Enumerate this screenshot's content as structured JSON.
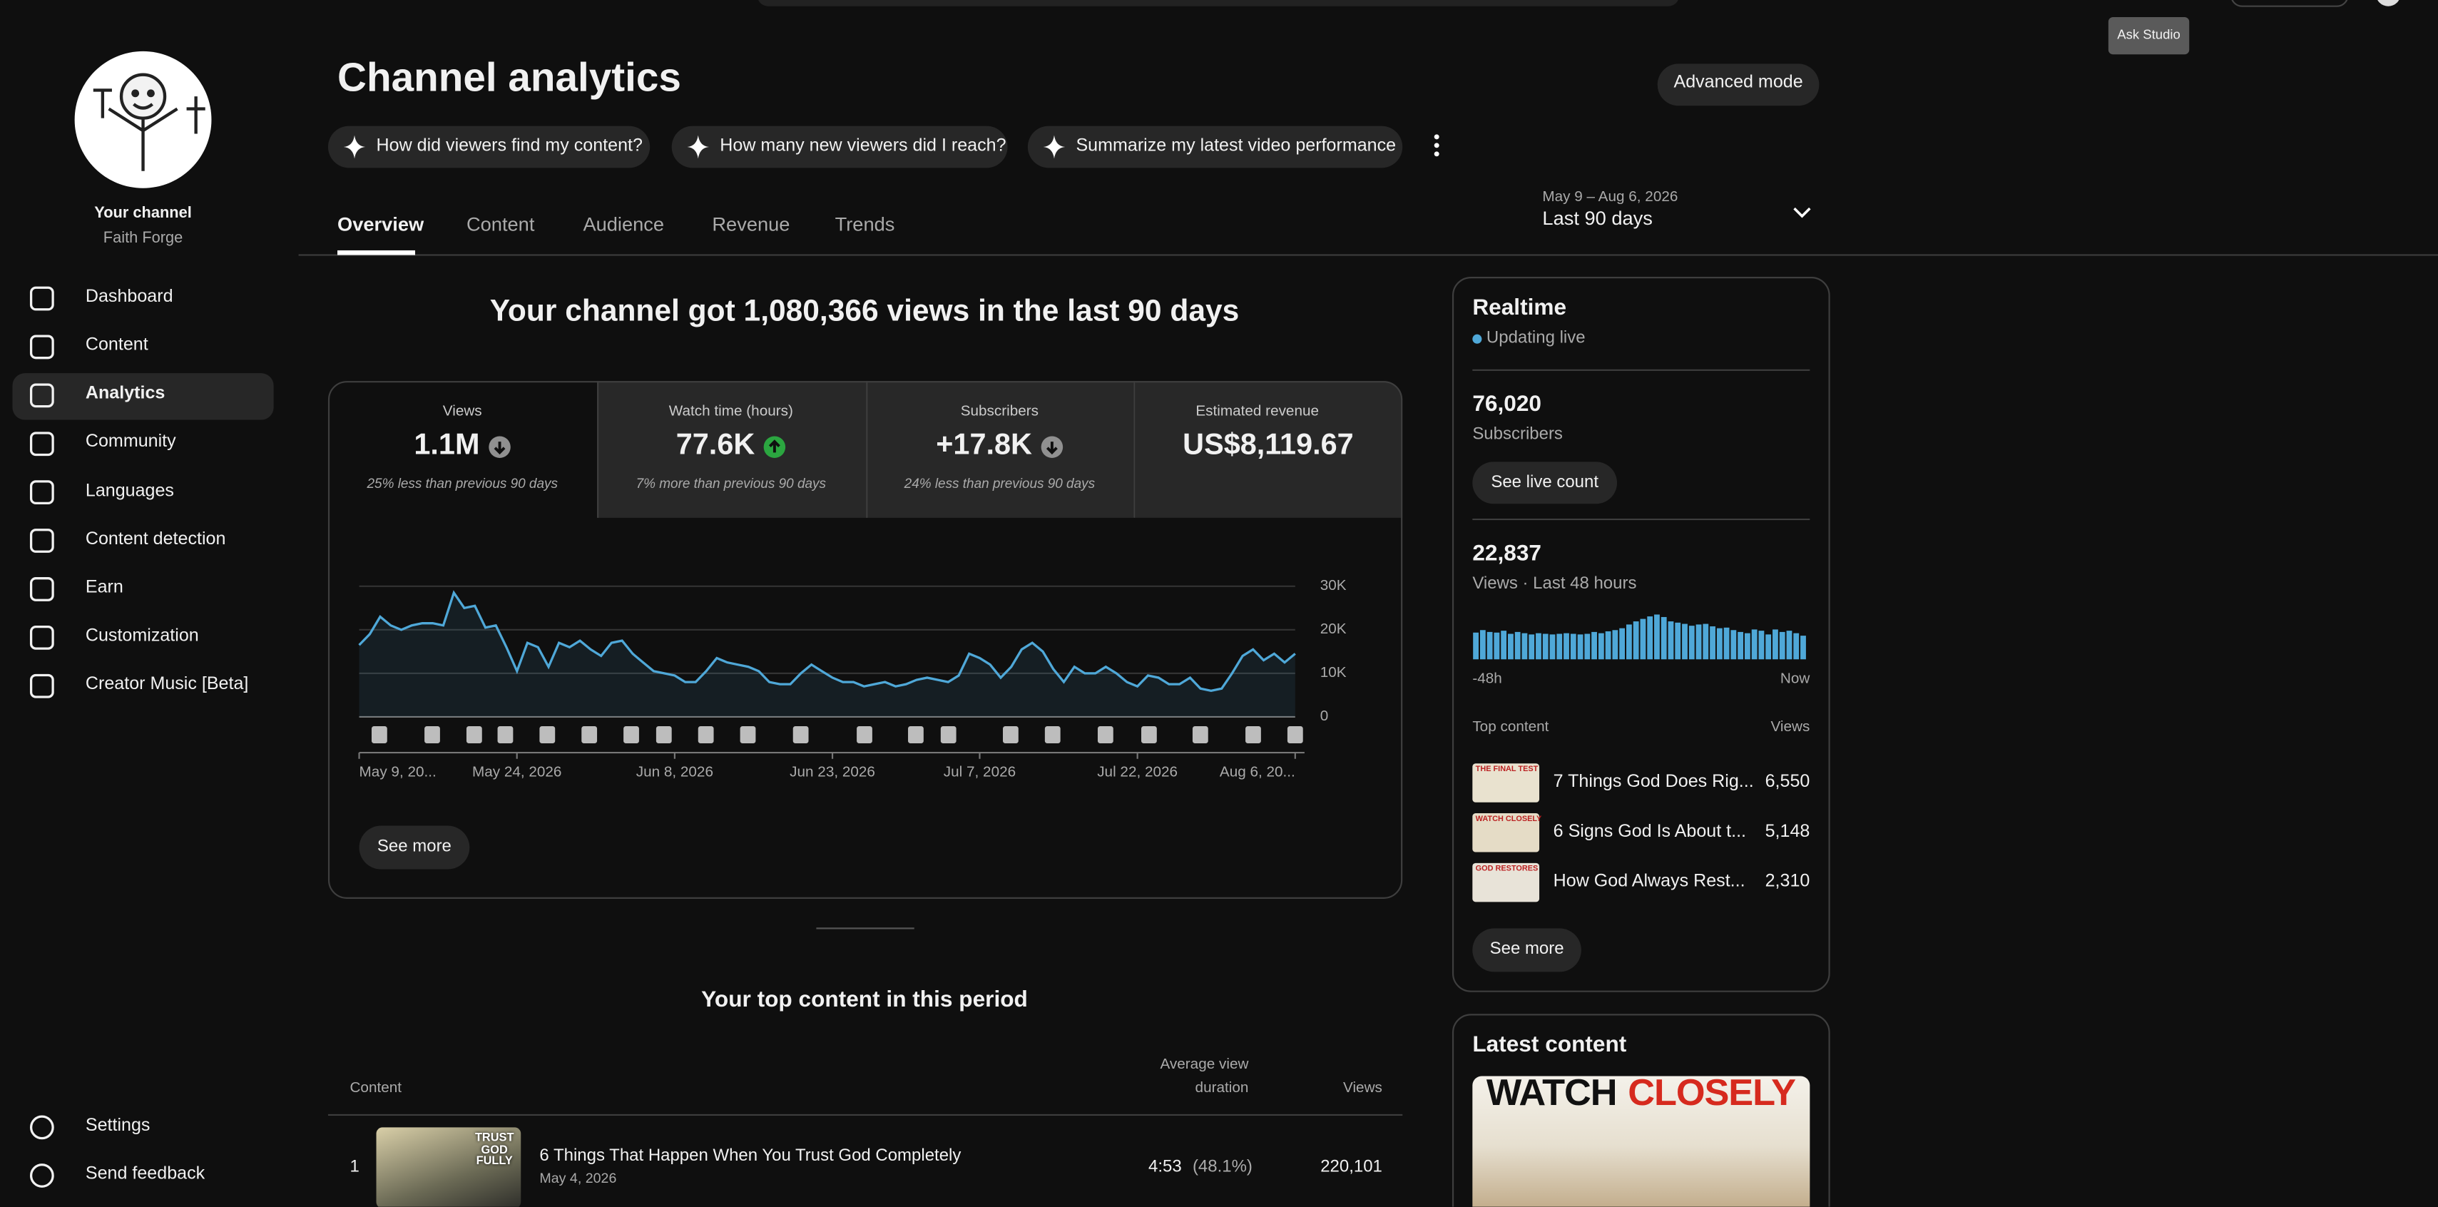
{
  "header": {
    "title": "Channel analytics",
    "advanced_button": "Advanced mode",
    "tooltip": "Ask Studio"
  },
  "prompts": [
    "How did viewers find my content?",
    "How many new viewers did I reach?",
    "Summarize my latest video performance"
  ],
  "tabs": [
    "Overview",
    "Content",
    "Audience",
    "Revenue",
    "Trends"
  ],
  "date_range": {
    "dates": "May 9 – Aug 6, 2026",
    "label": "Last 90 days"
  },
  "sidebar": {
    "channel_label": "Your channel",
    "channel_name": "Faith Forge",
    "nav": [
      "Dashboard",
      "Content",
      "Analytics",
      "Community",
      "Languages",
      "Content detection",
      "Earn",
      "Customization",
      "Creator Music [Beta]"
    ],
    "bottom": [
      "Settings",
      "Send feedback"
    ]
  },
  "summary": "Your channel got 1,080,366 views in the last 90 days",
  "metrics": [
    {
      "label": "Views",
      "value": "1.1M",
      "note": "25% less than previous 90 days",
      "trend": "down"
    },
    {
      "label": "Watch time (hours)",
      "value": "77.6K",
      "note": "7% more than previous 90 days",
      "trend": "up"
    },
    {
      "label": "Subscribers",
      "value": "+17.8K",
      "note": "24% less than previous 90 days",
      "trend": "down"
    },
    {
      "label": "Estimated revenue",
      "value": "US$8,119.67",
      "info_icon": true
    }
  ],
  "views_chart": {
    "type": "line",
    "color": "#4fa8d8",
    "values": [
      16500,
      19000,
      23000,
      21000,
      20000,
      21000,
      21500,
      21500,
      21000,
      28500,
      25000,
      25500,
      20500,
      21000,
      16000,
      10500,
      17000,
      16000,
      11500,
      17000,
      16000,
      17500,
      15500,
      14000,
      17000,
      17500,
      14500,
      12500,
      10500,
      10000,
      9500,
      8000,
      8000,
      10500,
      13500,
      12500,
      12000,
      11500,
      10500,
      8000,
      7500,
      7500,
      10000,
      12000,
      10500,
      9000,
      8000,
      8000,
      7000,
      7500,
      8000,
      7000,
      7500,
      8500,
      9000,
      8500,
      8000,
      9500,
      14500,
      13500,
      12000,
      9000,
      11500,
      15500,
      17000,
      15000,
      11000,
      8000,
      11500,
      10000,
      10000,
      11500,
      10000,
      8000,
      7000,
      9500,
      9000,
      7500,
      7500,
      9000,
      6500,
      6000,
      6500,
      10000,
      14000,
      15500,
      13000,
      14500,
      12500,
      14500
    ],
    "ylim": [
      0,
      30000
    ],
    "yticks": [
      0,
      {
        "value": 10000,
        "label": "10K"
      },
      {
        "value": 20000,
        "label": "20K"
      },
      {
        "value": 30000,
        "label": "30K"
      }
    ],
    "xlim": [
      0,
      89
    ],
    "xticks": [
      {
        "value": 0,
        "label": "May 9, 20..."
      },
      {
        "value": 15,
        "label": "May 24, 2026"
      },
      {
        "value": 30,
        "label": "Jun 8, 2026"
      },
      {
        "value": 45,
        "label": "Jun 23, 2026"
      },
      {
        "value": 59,
        "label": "Jul 7, 2026"
      },
      {
        "value": 74,
        "label": "Jul 22, 2026"
      },
      {
        "value": 89,
        "label": "Aug 6, 20..."
      }
    ],
    "grid": true
  },
  "see_more": "See more",
  "top_content": {
    "title": "Your top content in this period",
    "col_content": "Content",
    "col_avg": "Average view duration",
    "col_views": "Views",
    "rows": [
      {
        "rank": "1",
        "thumb_text": "TRUST GOD FULLY",
        "title": "6 Things That Happen When You Trust God Completely",
        "date": "May 4, 2026",
        "duration": "4:53",
        "percent": "(48.1%)",
        "views": "220,101"
      }
    ]
  },
  "realtime": {
    "title": "Realtime",
    "status": "Updating live",
    "subscribers": "76,020",
    "subscribers_label": "Subscribers",
    "live_button": "See live count",
    "views": "22,837",
    "views_label": "Views · Last 48 hours",
    "bars": {
      "type": "bar",
      "color": "#4fa8d8",
      "ylim": [
        0,
        800
      ],
      "values": [
        430,
        470,
        440,
        430,
        460,
        410,
        440,
        420,
        400,
        420,
        410,
        400,
        410,
        420,
        410,
        400,
        410,
        440,
        420,
        450,
        470,
        500,
        560,
        610,
        650,
        690,
        720,
        680,
        610,
        590,
        570,
        540,
        560,
        570,
        530,
        500,
        510,
        470,
        440,
        420,
        480,
        460,
        400,
        480,
        440,
        460,
        420,
        380
      ]
    },
    "start_label": "-48h",
    "end_label": "Now",
    "top_label": "Top content",
    "views_col": "Views",
    "items": [
      {
        "thumb_text": "THE FINAL TEST",
        "title": "7 Things God Does Rig...",
        "views": "6,550"
      },
      {
        "thumb_text": "WATCH CLOSELY",
        "title": "6 Signs God Is About t...",
        "views": "5,148"
      },
      {
        "thumb_text": "GOD RESTORES",
        "title": "How God Always Rest...",
        "views": "2,310"
      }
    ],
    "see_more": "See more"
  },
  "latest": {
    "title": "Latest content",
    "thumb_word1": "WATCH",
    "thumb_word2": "CLOSELY"
  }
}
